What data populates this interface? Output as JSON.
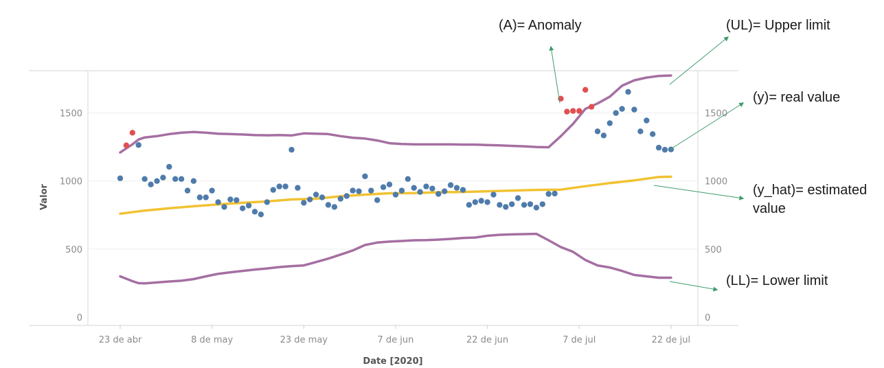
{
  "chart_data": {
    "type": "line",
    "title": "",
    "xlabel": "Date [2020]",
    "ylabel": "Valor",
    "ylim": [
      0,
      1800
    ],
    "grid": true,
    "x_ticks": [
      "23 de abr",
      "8 de may",
      "23 de may",
      "7 de jun",
      "22 de jun",
      "7 de jul",
      "22 de jul"
    ],
    "y_ticks": [
      0,
      500,
      1000,
      1500
    ],
    "series": [
      {
        "key": "upper_limit",
        "color": "#a56fa2",
        "x": [
          0,
          1,
          2,
          3,
          4,
          6,
          8,
          10,
          12,
          14,
          16,
          18,
          20,
          22,
          24,
          26,
          28,
          30,
          32,
          34,
          36,
          38,
          40,
          42,
          44,
          46,
          48,
          50,
          52,
          54,
          56,
          58,
          60,
          62,
          64,
          66,
          68,
          70,
          72,
          74,
          76,
          78,
          80,
          82,
          84,
          86,
          88,
          90
        ],
        "values": [
          1210,
          1240,
          1270,
          1305,
          1320,
          1330,
          1345,
          1355,
          1360,
          1355,
          1348,
          1345,
          1342,
          1338,
          1336,
          1338,
          1335,
          1350,
          1348,
          1345,
          1330,
          1318,
          1312,
          1298,
          1278,
          1272,
          1270,
          1270,
          1270,
          1270,
          1268,
          1268,
          1265,
          1262,
          1258,
          1255,
          1250,
          1248,
          1330,
          1420,
          1530,
          1570,
          1620,
          1700,
          1740,
          1760,
          1772,
          1775
        ]
      },
      {
        "key": "estimated_value",
        "color": "#f1c232",
        "x": [
          0,
          4,
          8,
          12,
          16,
          20,
          24,
          28,
          32,
          36,
          40,
          44,
          48,
          52,
          56,
          60,
          64,
          68,
          72,
          76,
          80,
          84,
          88,
          90
        ],
        "values": [
          760,
          783,
          800,
          815,
          828,
          840,
          850,
          865,
          870,
          888,
          900,
          910,
          912,
          918,
          920,
          925,
          930,
          935,
          937,
          962,
          985,
          1005,
          1030,
          1032
        ]
      },
      {
        "key": "lower_limit",
        "color": "#a56fa2",
        "x": [
          0,
          2,
          3,
          4,
          6,
          8,
          10,
          12,
          14,
          16,
          18,
          20,
          22,
          24,
          26,
          28,
          30,
          32,
          34,
          36,
          38,
          40,
          42,
          44,
          46,
          48,
          50,
          52,
          54,
          56,
          58,
          60,
          62,
          64,
          66,
          68,
          70,
          72,
          74,
          76,
          78,
          80,
          82,
          84,
          86,
          88,
          90
        ],
        "values": [
          300,
          265,
          250,
          248,
          255,
          262,
          268,
          280,
          300,
          318,
          330,
          340,
          350,
          358,
          368,
          375,
          380,
          405,
          430,
          460,
          490,
          530,
          548,
          555,
          560,
          565,
          566,
          570,
          575,
          582,
          585,
          598,
          605,
          608,
          610,
          612,
          565,
          515,
          480,
          420,
          380,
          365,
          340,
          310,
          300,
          290,
          290
        ]
      },
      {
        "key": "real_value",
        "color": "#4f7bab",
        "x": [
          0,
          3,
          4,
          5,
          6,
          7,
          8,
          9,
          10,
          11,
          12,
          13,
          14,
          15,
          16,
          17,
          18,
          19,
          20,
          21,
          22,
          23,
          24,
          25,
          26,
          27,
          28,
          29,
          30,
          31,
          32,
          33,
          34,
          35,
          36,
          37,
          38,
          39,
          40,
          41,
          42,
          43,
          44,
          45,
          46,
          47,
          48,
          49,
          50,
          51,
          52,
          53,
          54,
          55,
          56,
          57,
          58,
          59,
          60,
          61,
          62,
          63,
          64,
          65,
          66,
          67,
          68,
          69,
          70,
          71,
          78,
          79,
          80,
          81,
          82,
          83,
          84,
          85,
          86,
          87,
          88,
          89,
          90
        ],
        "values": [
          1020,
          1265,
          1015,
          975,
          1000,
          1025,
          1105,
          1015,
          1015,
          930,
          1000,
          880,
          880,
          930,
          845,
          810,
          865,
          860,
          800,
          820,
          775,
          755,
          845,
          935,
          960,
          960,
          1230,
          950,
          840,
          865,
          900,
          880,
          825,
          810,
          870,
          890,
          930,
          925,
          1035,
          930,
          860,
          955,
          975,
          900,
          930,
          1015,
          950,
          920,
          960,
          945,
          905,
          925,
          970,
          950,
          935,
          825,
          845,
          855,
          845,
          900,
          825,
          810,
          830,
          875,
          825,
          830,
          805,
          830,
          905,
          908,
          1365,
          1335,
          1425,
          1500,
          1530,
          1655,
          1525,
          1365,
          1445,
          1345,
          1245,
          1230,
          1232
        ]
      },
      {
        "key": "anomaly",
        "color": "#e05050",
        "x": [
          1,
          2,
          72,
          73,
          74,
          75,
          76,
          77
        ],
        "values": [
          1262,
          1355,
          1605,
          1510,
          1515,
          1515,
          1670,
          1545
        ]
      }
    ],
    "annotations": [
      {
        "key": "anomaly",
        "text": "(A)= Anomaly"
      },
      {
        "key": "upper_limit",
        "text": "(UL)= Upper limit"
      },
      {
        "key": "real_value",
        "text": "(y)= real value"
      },
      {
        "key": "estimated_value",
        "text": "(y_hat)= estimated",
        "text2": "value"
      },
      {
        "key": "lower_limit",
        "text": "(LL)= Lower limit"
      }
    ]
  }
}
